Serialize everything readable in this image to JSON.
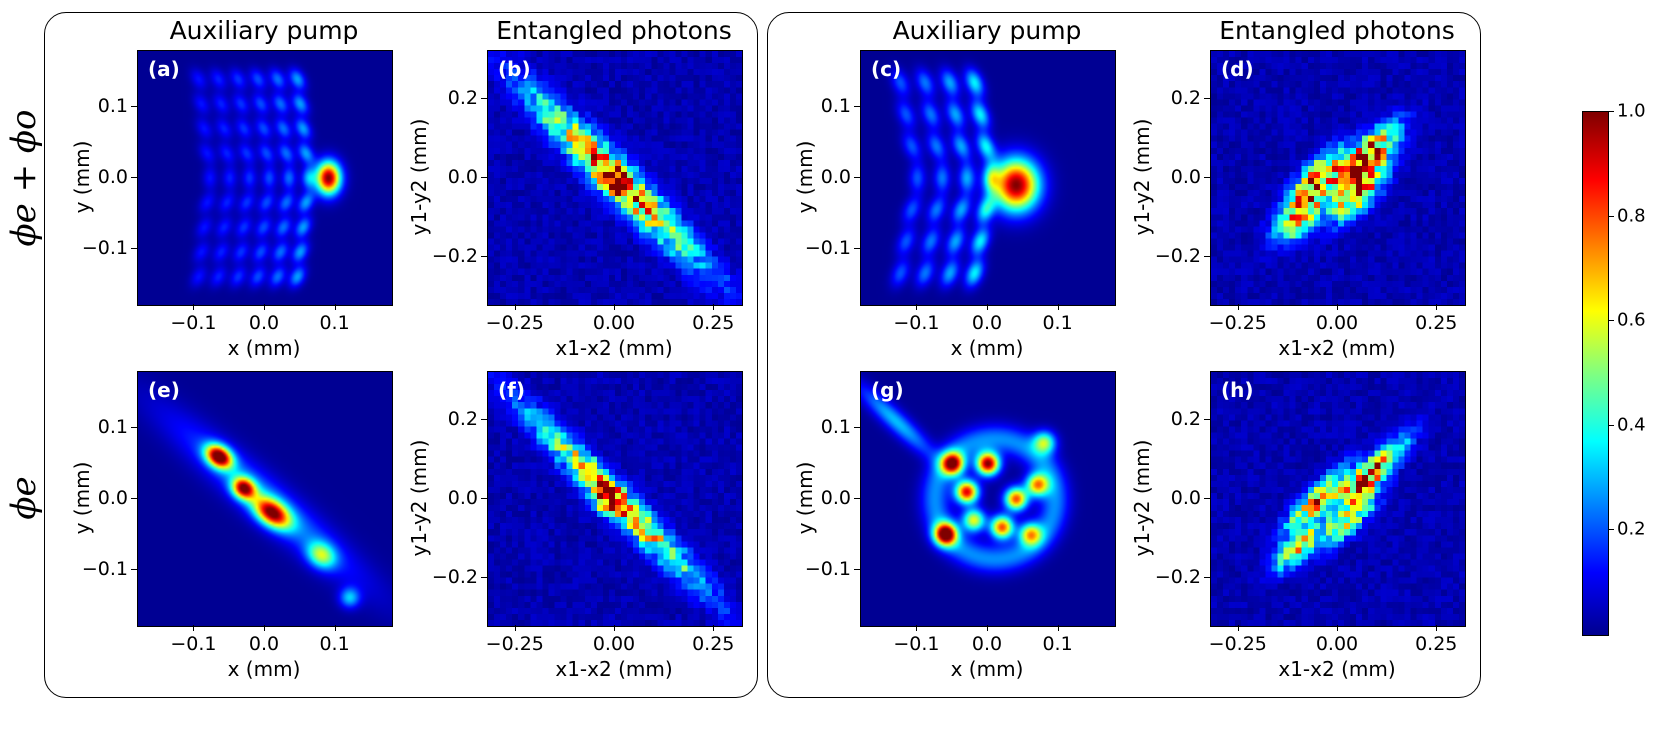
{
  "row_labels": [
    "ϕe + ϕo",
    "ϕe"
  ],
  "groups": [
    {
      "titles": [
        "Auxiliary pump",
        "Entangled photons"
      ]
    },
    {
      "titles": [
        "Auxiliary pump",
        "Entangled photons"
      ]
    }
  ],
  "axis_labels": {
    "pump_x": "x (mm)",
    "pump_y": "y (mm)",
    "ent_x": "x1-x2 (mm)",
    "ent_y": "y1-y2 (mm)"
  },
  "ticks": {
    "pump_x": [
      "−0.1",
      "0.0",
      "0.1"
    ],
    "pump_y": [
      "0.1",
      "0.0",
      "−0.1"
    ],
    "ent_x": [
      "−0.25",
      "0.00",
      "0.25"
    ],
    "ent_y": [
      "0.2",
      "0.0",
      "−0.2"
    ]
  },
  "colorbar": {
    "ticks": [
      "1.0",
      "0.8",
      "0.6",
      "0.4",
      "0.2"
    ],
    "range": [
      0,
      1.0
    ],
    "colormap": "jet"
  },
  "chart_data": [
    {
      "type": "heatmap",
      "panel": "(a)",
      "group": 1,
      "row": "ϕe + ϕo",
      "title": "Auxiliary pump",
      "xlabel": "x (mm)",
      "ylabel": "y (mm)",
      "xlim": [
        -0.18,
        0.18
      ],
      "ylim": [
        -0.18,
        0.18
      ],
      "peak": {
        "x": 0.09,
        "y": 0.0,
        "value": 1.0
      }
    },
    {
      "type": "heatmap",
      "panel": "(b)",
      "group": 1,
      "row": "ϕe + ϕo",
      "title": "Entangled photons",
      "xlabel": "x1-x2 (mm)",
      "ylabel": "y1-y2 (mm)",
      "xlim": [
        -0.32,
        0.32
      ],
      "ylim": [
        -0.32,
        0.32
      ],
      "peak": {
        "x": 0.0,
        "y": 0.0,
        "value": 1.0
      }
    },
    {
      "type": "heatmap",
      "panel": "(c)",
      "group": 2,
      "row": "ϕe + ϕo",
      "title": "Auxiliary pump",
      "xlabel": "x (mm)",
      "ylabel": "y (mm)",
      "xlim": [
        -0.18,
        0.18
      ],
      "ylim": [
        -0.18,
        0.18
      ],
      "peak": {
        "x": 0.04,
        "y": -0.01,
        "value": 1.0
      }
    },
    {
      "type": "heatmap",
      "panel": "(d)",
      "group": 2,
      "row": "ϕe + ϕo",
      "title": "Entangled photons",
      "xlabel": "x1-x2 (mm)",
      "ylabel": "y1-y2 (mm)",
      "xlim": [
        -0.32,
        0.32
      ],
      "ylim": [
        -0.32,
        0.32
      ],
      "peak": {
        "x": 0.1,
        "y": 0.11,
        "value": 1.0
      }
    },
    {
      "type": "heatmap",
      "panel": "(e)",
      "group": 1,
      "row": "ϕe",
      "title": "Auxiliary pump",
      "xlabel": "x (mm)",
      "ylabel": "y (mm)",
      "xlim": [
        -0.18,
        0.18
      ],
      "ylim": [
        -0.18,
        0.18
      ],
      "peak": {
        "x": -0.07,
        "y": 0.06,
        "value": 1.0
      }
    },
    {
      "type": "heatmap",
      "panel": "(f)",
      "group": 1,
      "row": "ϕe",
      "title": "Entangled photons",
      "xlabel": "x1-x2 (mm)",
      "ylabel": "y1-y2 (mm)",
      "xlim": [
        -0.32,
        0.32
      ],
      "ylim": [
        -0.32,
        0.32
      ],
      "peak": {
        "x": -0.02,
        "y": 0.0,
        "value": 1.0
      }
    },
    {
      "type": "heatmap",
      "panel": "(g)",
      "group": 2,
      "row": "ϕe",
      "title": "Auxiliary pump",
      "xlabel": "x (mm)",
      "ylabel": "y (mm)",
      "xlim": [
        -0.18,
        0.18
      ],
      "ylim": [
        -0.18,
        0.18
      ],
      "peak": {
        "x": 0.0,
        "y": 0.05,
        "value": 1.0
      }
    },
    {
      "type": "heatmap",
      "panel": "(h)",
      "group": 2,
      "row": "ϕe",
      "title": "Entangled photons",
      "xlabel": "x1-x2 (mm)",
      "ylabel": "y1-y2 (mm)",
      "xlim": [
        -0.32,
        0.32
      ],
      "ylim": [
        -0.32,
        0.32
      ],
      "peak": {
        "x": 0.1,
        "y": 0.11,
        "value": 1.0
      }
    }
  ]
}
